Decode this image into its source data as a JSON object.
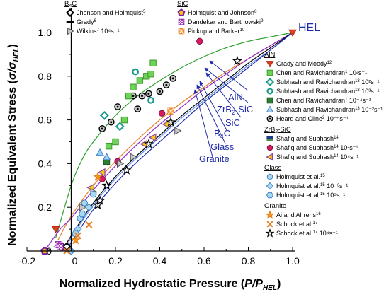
{
  "chart_data": {
    "type": "scatter",
    "xlabel": "Normalized Hydrostatic Pressure (P/P_HEL)",
    "ylabel": "Normalized Equivalent Stress (σ/σ_HEL)",
    "xlim": [
      -0.2,
      1.0
    ],
    "ylim": [
      0.0,
      1.0
    ],
    "xticks": [
      "-0.2",
      "0",
      "0.2",
      "0.4",
      "0.6",
      "0.8",
      "1.0"
    ],
    "yticks": [
      "0",
      "0.2",
      "0.4",
      "0.6",
      "0.8",
      "1.0"
    ],
    "hel_label": "HEL",
    "hel_point": [
      1.0,
      1.0
    ],
    "curve_labels": [
      "AlN",
      "ZrB2-SiC",
      "SiC",
      "B4C",
      "Glass",
      "Granite"
    ],
    "curves": [
      {
        "material": "AlN",
        "color": "#2ca02c",
        "points": [
          [
            -0.07,
            0.06
          ],
          [
            0.0,
            0.3
          ],
          [
            0.05,
            0.42
          ],
          [
            0.1,
            0.5
          ],
          [
            0.2,
            0.62
          ],
          [
            0.3,
            0.71
          ],
          [
            0.4,
            0.78
          ],
          [
            0.5,
            0.84
          ],
          [
            0.6,
            0.89
          ],
          [
            0.7,
            0.93
          ],
          [
            0.8,
            0.96
          ],
          [
            0.9,
            0.98
          ],
          [
            1.0,
            1.0
          ]
        ]
      },
      {
        "material": "ZrB2-SiC",
        "color": "#e67e22",
        "points": [
          [
            -0.06,
            0.05
          ],
          [
            0.0,
            0.16
          ],
          [
            0.1,
            0.3
          ],
          [
            0.2,
            0.41
          ],
          [
            0.3,
            0.51
          ],
          [
            0.4,
            0.6
          ],
          [
            0.5,
            0.68
          ],
          [
            0.6,
            0.75
          ],
          [
            0.7,
            0.82
          ],
          [
            0.8,
            0.88
          ],
          [
            0.9,
            0.94
          ],
          [
            1.0,
            1.0
          ]
        ]
      },
      {
        "material": "SiC",
        "color": "#8e2cc8",
        "points": [
          [
            -0.12,
            0.0
          ],
          [
            -0.05,
            0.1
          ],
          [
            0.0,
            0.15
          ],
          [
            0.1,
            0.28
          ],
          [
            0.2,
            0.39
          ],
          [
            0.3,
            0.49
          ],
          [
            0.4,
            0.58
          ],
          [
            0.5,
            0.66
          ],
          [
            0.6,
            0.74
          ],
          [
            0.7,
            0.81
          ],
          [
            0.8,
            0.88
          ],
          [
            0.9,
            0.94
          ],
          [
            1.0,
            1.0
          ]
        ]
      },
      {
        "material": "B4C",
        "color": "#000000",
        "points": [
          [
            -0.04,
            0.0
          ],
          [
            0.0,
            0.07
          ],
          [
            0.1,
            0.22
          ],
          [
            0.2,
            0.34
          ],
          [
            0.3,
            0.44
          ],
          [
            0.4,
            0.53
          ],
          [
            0.5,
            0.62
          ],
          [
            0.6,
            0.7
          ],
          [
            0.7,
            0.78
          ],
          [
            0.8,
            0.86
          ],
          [
            0.9,
            0.93
          ],
          [
            1.0,
            1.0
          ]
        ]
      },
      {
        "material": "Glass",
        "color": "#5b8def",
        "points": [
          [
            -0.03,
            0.0
          ],
          [
            0.0,
            0.06
          ],
          [
            0.1,
            0.21
          ],
          [
            0.2,
            0.33
          ],
          [
            0.3,
            0.43
          ],
          [
            0.4,
            0.52
          ],
          [
            0.5,
            0.61
          ],
          [
            0.6,
            0.69
          ],
          [
            0.7,
            0.77
          ],
          [
            0.8,
            0.85
          ],
          [
            0.9,
            0.92
          ],
          [
            1.0,
            1.0
          ]
        ]
      },
      {
        "material": "Granite",
        "color": "#1f2aa8",
        "points": [
          [
            -0.02,
            0.0
          ],
          [
            0.0,
            0.04
          ],
          [
            0.1,
            0.19
          ],
          [
            0.2,
            0.31
          ],
          [
            0.3,
            0.41
          ],
          [
            0.4,
            0.5
          ],
          [
            0.5,
            0.59
          ],
          [
            0.6,
            0.68
          ],
          [
            0.7,
            0.76
          ],
          [
            0.8,
            0.84
          ],
          [
            0.9,
            0.92
          ],
          [
            1.0,
            1.0
          ]
        ]
      }
    ],
    "legend": [
      {
        "group": "B4C",
        "entries": [
          {
            "label": "Jhonson and Holmquist",
            "sup": "5",
            "marker": "diamond",
            "fill": "#ffffff",
            "stroke": "#000000"
          },
          {
            "label": "Grady",
            "sup": "6",
            "marker": "dash",
            "fill": "#000000",
            "stroke": "#000000"
          },
          {
            "label": "Wilkins",
            "sup": "7",
            "suffix": " 10⁴s⁻¹",
            "marker": "tri-right",
            "fill": "#c8c8c8",
            "stroke": "#555555"
          }
        ]
      },
      {
        "group": "SiC",
        "entries": [
          {
            "label": "Holmquist and Johnson",
            "sup": "8",
            "marker": "pentagon",
            "fill": "#f1c40f",
            "stroke": "#7d1fa8"
          },
          {
            "label": "Dandekar and Barthowski",
            "sup": "9",
            "marker": "checker",
            "fill": "#9b2bb5",
            "stroke": "#9b2bb5"
          },
          {
            "label": "Pickup and Barker",
            "sup": "10",
            "marker": "square-x",
            "fill": "#f5a040",
            "stroke": "#e67e22"
          }
        ]
      },
      {
        "group": "AlN",
        "entries": [
          {
            "label": "Grady and Moody",
            "sup": "12",
            "marker": "tri-down",
            "fill": "#e03c1f",
            "stroke": "#b02a10"
          },
          {
            "label": "Chen and Ravichandran",
            "sup": "1",
            "suffix": " 10²s⁻¹",
            "marker": "square",
            "fill": "#6fd35a",
            "stroke": "#3a9a2a"
          },
          {
            "label": "Subhash and Ravichandran",
            "sup": "13",
            "suffix": " 10²s⁻¹",
            "marker": "diamond",
            "fill": "#ffffff",
            "stroke": "#1a9a8a"
          },
          {
            "label": "Subhash and Ravichandran",
            "sup": "13",
            "suffix": " 10³s⁻¹",
            "marker": "ring",
            "fill": "#ffffff",
            "stroke": "#1a9a8a"
          },
          {
            "label": "Chen and Ravichandran",
            "sup": "1",
            "suffix": " 10⁻⁴s⁻¹",
            "marker": "square",
            "fill": "#2e7d32",
            "stroke": "#1b5e20"
          },
          {
            "label": "Subhash and Ravichandran",
            "sup": "13",
            "suffix": " 10⁻²s⁻¹",
            "marker": "triangle",
            "fill": "#9fd0f5",
            "stroke": "#3b7fc4"
          },
          {
            "label": "Heard and Cline",
            "sup": "2",
            "suffix": " 10⁻⁵s⁻¹",
            "marker": "target",
            "fill": "#cccccc",
            "stroke": "#000000"
          }
        ]
      },
      {
        "group": "ZrB2-SiC",
        "entries": [
          {
            "label": "Shafiq and Subhash",
            "sup": "14",
            "marker": "band",
            "fill": "#4a8c4a",
            "stroke": "#1f3a8c"
          },
          {
            "label": "Shafiq and Subhash",
            "sup": "14",
            "suffix": " 10²s⁻¹",
            "marker": "circle",
            "fill": "#d81b60",
            "stroke": "#7a1040"
          },
          {
            "label": "Shafiq and Subhash",
            "sup": "14",
            "suffix": " 10⁴s⁻¹",
            "marker": "tri-left",
            "fill": "#f5c518",
            "stroke": "#8e44ad"
          }
        ]
      },
      {
        "group": "Glass",
        "entries": [
          {
            "label": "Holmquist et al.",
            "sup": "15",
            "marker": "circle",
            "fill": "#a8d8f0",
            "stroke": "#3b7fc4"
          },
          {
            "label": "Holmquist et al.",
            "sup": "15",
            "suffix": " 10⁻³s⁻¹",
            "marker": "diamond",
            "fill": "#a8d8f0",
            "stroke": "#3b7fc4"
          },
          {
            "label": "Holmquist et al.",
            "sup": "15",
            "suffix": " 10⁵s⁻¹",
            "marker": "hexagon",
            "fill": "#a8d8f0",
            "stroke": "#3b7fc4"
          }
        ]
      },
      {
        "group": "Granite",
        "entries": [
          {
            "label": "Ai and Ahrens",
            "sup": "16",
            "marker": "star",
            "fill": "#f39c12",
            "stroke": "#e67e22"
          },
          {
            "label": "Schock et al.",
            "sup": "17",
            "marker": "x",
            "fill": "#e67e22",
            "stroke": "#e67e22"
          },
          {
            "label": "Schock et al.",
            "sup": "17",
            "suffix": " 10⁴s⁻¹",
            "marker": "star",
            "fill": "#ffffff",
            "stroke": "#000000"
          }
        ]
      }
    ],
    "series": [
      {
        "name": "Heard and Cline 10⁻⁵s⁻¹",
        "marker": "target",
        "fill": "#cccccc",
        "stroke": "#000000",
        "points": [
          [
            0.14,
            0.56
          ],
          [
            0.18,
            0.59
          ],
          [
            0.21,
            0.66
          ],
          [
            0.28,
            0.71
          ],
          [
            0.32,
            0.71
          ],
          [
            0.35,
            0.72
          ],
          [
            0.4,
            0.73
          ],
          [
            0.43,
            0.76
          ],
          [
            0.46,
            0.79
          ],
          [
            0.3,
            0.65
          ]
        ]
      },
      {
        "name": "Chen and Ravichandran 10²s⁻¹",
        "marker": "square",
        "fill": "#6fd35a",
        "stroke": "#3a9a2a",
        "points": [
          [
            0.17,
            0.48
          ],
          [
            0.2,
            0.5
          ],
          [
            0.24,
            0.6
          ],
          [
            0.26,
            0.71
          ],
          [
            0.28,
            0.75
          ],
          [
            0.31,
            0.78
          ],
          [
            0.34,
            0.8
          ],
          [
            0.36,
            0.81
          ],
          [
            0.37,
            0.86
          ]
        ]
      },
      {
        "name": "Chen and Ravichandran 10⁻⁴s⁻¹",
        "marker": "square",
        "fill": "#2e7d32",
        "stroke": "#1b5e20",
        "points": [
          [
            0.16,
            0.41
          ]
        ]
      },
      {
        "name": "Subhash and Ravichandran 10²s⁻¹",
        "marker": "diamond",
        "fill": "#ffffff",
        "stroke": "#1a9a8a",
        "points": [
          [
            0.15,
            0.62
          ],
          [
            0.22,
            0.57
          ]
        ]
      },
      {
        "name": "Subhash and Ravichandran 10³s⁻¹",
        "marker": "ring",
        "fill": "#ffffff",
        "stroke": "#1a9a8a",
        "points": [
          [
            0.29,
            0.82
          ],
          [
            0.36,
            0.69
          ]
        ]
      },
      {
        "name": "Subhash and Ravichandran 10⁻²s⁻¹",
        "marker": "triangle",
        "fill": "#9fd0f5",
        "stroke": "#3b7fc4",
        "points": [
          [
            0.13,
            0.45
          ],
          [
            0.16,
            0.43
          ]
        ]
      },
      {
        "name": "Grady and Moody",
        "marker": "tri-down",
        "fill": "#e03c1f",
        "stroke": "#b02a10",
        "points": [
          [
            -0.07,
            0.1
          ],
          [
            1.0,
            1.0
          ]
        ]
      },
      {
        "name": "Shafiq and Subhash 10²s⁻¹",
        "marker": "circle",
        "fill": "#d81b60",
        "stroke": "#7a1040",
        "points": [
          [
            0.14,
            0.33
          ],
          [
            0.21,
            0.41
          ],
          [
            0.41,
            0.63
          ],
          [
            0.58,
            0.96
          ]
        ]
      },
      {
        "name": "Shafiq and Subhash 10⁴s⁻¹",
        "marker": "tri-left",
        "fill": "#f5c518",
        "stroke": "#8e44ad",
        "points": [
          [
            -0.06,
            0.02
          ],
          [
            0.09,
            0.29
          ],
          [
            0.14,
            0.36
          ],
          [
            0.33,
            0.49
          ],
          [
            0.37,
            0.52
          ],
          [
            0.43,
            0.58
          ]
        ]
      },
      {
        "name": "Wilkins 10⁴s⁻¹",
        "marker": "tri-right",
        "fill": "#c8c8c8",
        "stroke": "#555555",
        "points": [
          [
            -0.03,
            0.02
          ],
          [
            0.05,
            0.2
          ],
          [
            0.1,
            0.27
          ],
          [
            0.22,
            0.4
          ],
          [
            0.28,
            0.43
          ],
          [
            0.48,
            0.55
          ]
        ]
      },
      {
        "name": "Jhonson and Holmquist",
        "marker": "diamond",
        "fill": "#ffffff",
        "stroke": "#000000",
        "points": [
          [
            -0.04,
            0.02
          ],
          [
            -0.02,
            0.02
          ]
        ]
      },
      {
        "name": "Holmquist and Johnson",
        "marker": "pentagon",
        "fill": "#f1c40f",
        "stroke": "#7d1fa8",
        "points": [
          [
            -0.12,
            0.0
          ]
        ]
      },
      {
        "name": "Dandekar and Barthowski",
        "marker": "checker",
        "fill": "#9b2bb5",
        "stroke": "#9b2bb5",
        "points": [
          [
            -0.06,
            0.03
          ],
          [
            -0.05,
            0.02
          ]
        ]
      },
      {
        "name": "Pickup and Barker",
        "marker": "square-x",
        "fill": "#f5a040",
        "stroke": "#e67e22",
        "points": [
          [
            0.45,
            0.64
          ]
        ]
      },
      {
        "name": "Holmquist et al. (Glass)",
        "marker": "circle",
        "fill": "#a8d8f0",
        "stroke": "#3b7fc4",
        "points": [
          [
            0.04,
            0.15
          ],
          [
            0.06,
            0.22
          ],
          [
            0.1,
            0.26
          ]
        ]
      },
      {
        "name": "Holmquist et al. 10⁻³s⁻¹",
        "marker": "diamond",
        "fill": "#a8d8f0",
        "stroke": "#3b7fc4",
        "points": [
          [
            0.0,
            0.0
          ],
          [
            0.03,
            0.1
          ],
          [
            0.08,
            0.2
          ]
        ]
      },
      {
        "name": "Holmquist et al. 10⁵s⁻¹",
        "marker": "hexagon",
        "fill": "#a8d8f0",
        "stroke": "#3b7fc4",
        "points": [
          [
            0.02,
            0.08
          ],
          [
            0.05,
            0.17
          ]
        ]
      },
      {
        "name": "Ai and Ahrens",
        "marker": "star",
        "fill": "#f39c12",
        "stroke": "#e67e22",
        "points": [
          [
            0.02,
            0.05
          ],
          [
            0.12,
            0.34
          ]
        ]
      },
      {
        "name": "Schock et al.",
        "marker": "x",
        "fill": "#e67e22",
        "stroke": "#e67e22",
        "points": [
          [
            -0.02,
            0.0
          ],
          [
            0.03,
            0.07
          ],
          [
            0.08,
            0.12
          ]
        ]
      },
      {
        "name": "Schock et al. 10⁴s⁻¹",
        "marker": "star",
        "fill": "#ffffff",
        "stroke": "#000000",
        "points": [
          [
            0.12,
            0.21
          ],
          [
            0.13,
            0.23
          ],
          [
            0.16,
            0.3
          ],
          [
            0.25,
            0.37
          ],
          [
            0.35,
            0.49
          ],
          [
            0.45,
            0.59
          ],
          [
            0.75,
            0.87
          ]
        ]
      }
    ]
  }
}
